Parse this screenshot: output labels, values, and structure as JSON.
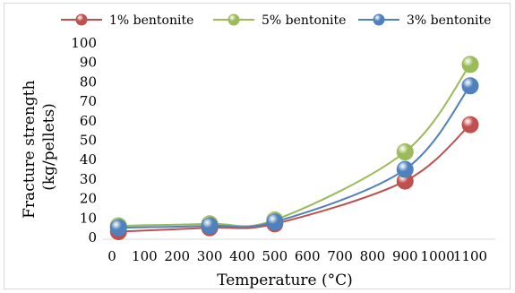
{
  "chart_data": {
    "type": "line",
    "xlabel": "Temperature (°C)",
    "ylabel_lines": [
      "Fracture strength",
      "(kg/pellets)"
    ],
    "xlim": [
      0,
      1100
    ],
    "ylim": [
      0,
      100
    ],
    "xticks": [
      0,
      100,
      200,
      300,
      400,
      500,
      600,
      700,
      800,
      900,
      1000,
      1100
    ],
    "yticks": [
      0,
      10,
      20,
      30,
      40,
      50,
      60,
      70,
      80,
      90,
      100
    ],
    "grid": false,
    "smooth": true,
    "legend_position": "top",
    "x": [
      20,
      300,
      500,
      900,
      1100
    ],
    "series": [
      {
        "name": "1% bentonite",
        "color": "#c0504d",
        "values": [
          3,
          5,
          7,
          29,
          58
        ]
      },
      {
        "name": "5% bentonite",
        "color": "#9bbb59",
        "values": [
          6,
          7,
          9,
          44,
          89
        ]
      },
      {
        "name": "3% bentonite",
        "color": "#4f81bd",
        "values": [
          5,
          6,
          8,
          35,
          78
        ]
      }
    ]
  }
}
